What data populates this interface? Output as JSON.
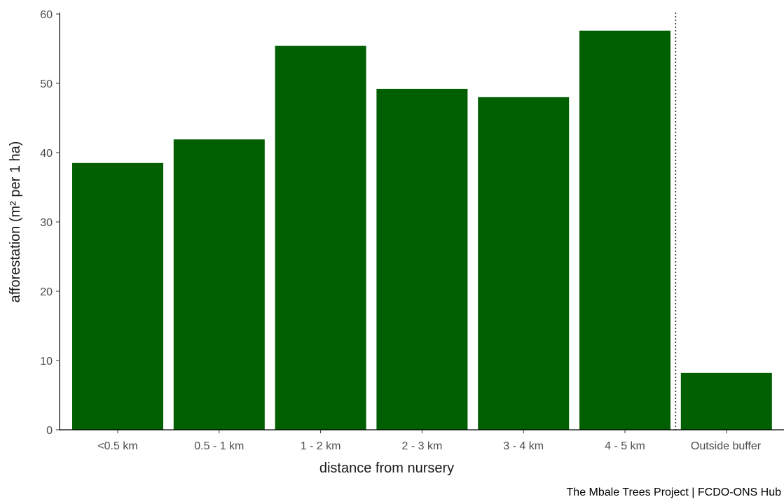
{
  "chart_data": {
    "type": "bar",
    "categories": [
      "<0.5 km",
      "0.5 - 1 km",
      "1 - 2 km",
      "2 - 3 km",
      "3 - 4 km",
      "4 - 5 km",
      "Outside buffer"
    ],
    "values": [
      38.5,
      41.9,
      55.4,
      49.2,
      48.0,
      57.6,
      8.2
    ],
    "bar_color": "#005f00",
    "xlabel": "distance from nursery",
    "ylabel": "afforestation (m² per 1 ha)",
    "ylim": [
      0,
      60
    ],
    "yticks": [
      "0",
      "10",
      "20",
      "30",
      "40",
      "50",
      "60"
    ],
    "grid": false,
    "separator": "dotted vertical line between \"4 - 5 km\" and \"Outside buffer\""
  },
  "caption": "The Mbale Trees Project | FCDO-ONS Hub"
}
